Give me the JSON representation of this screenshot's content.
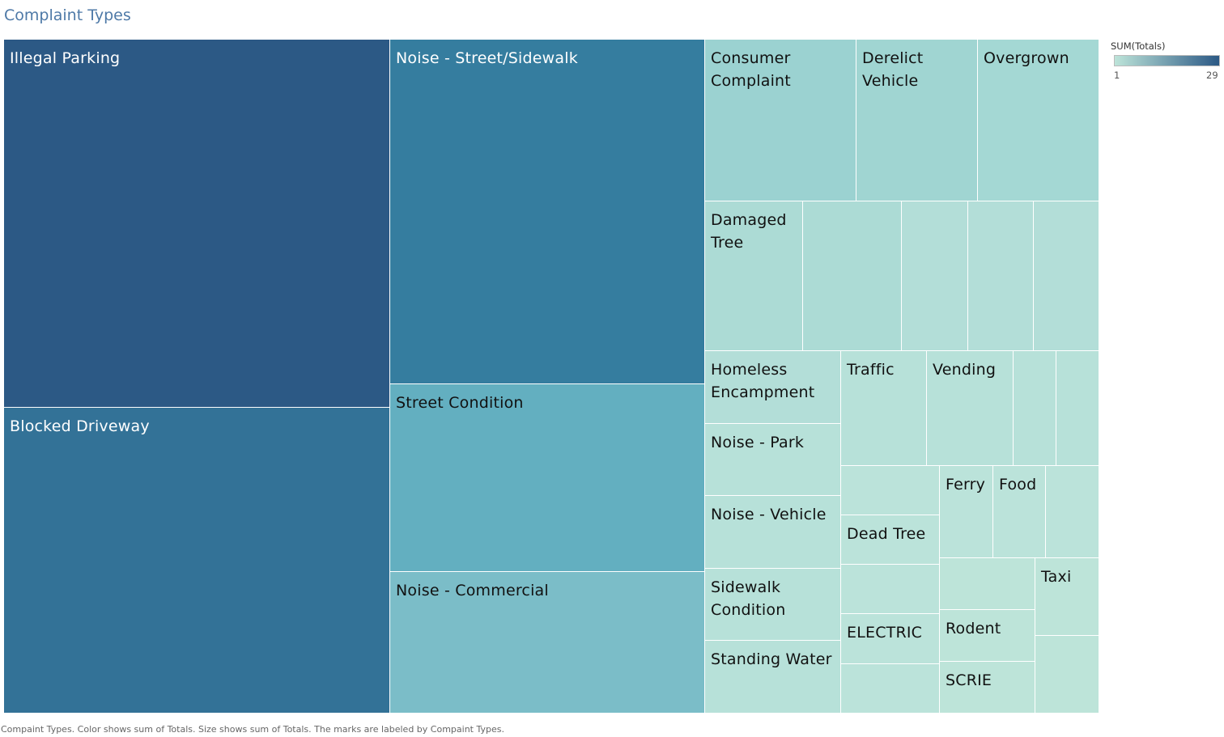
{
  "title": "Complaint Types",
  "legend": {
    "title": "SUM(Totals)",
    "min": "1",
    "max": "29",
    "color_low": "#bde4d9",
    "color_high": "#2c5985"
  },
  "footnote": "Compaint Types.  Color shows sum of Totals.  Size shows sum of Totals.  The marks are labeled by Compaint Types.",
  "chart_data": {
    "type": "treemap",
    "title": "Complaint Types",
    "size_measure": "SUM(Totals)",
    "color_measure": "SUM(Totals)",
    "color_range": [
      1,
      29
    ],
    "cells": [
      {
        "label": "Illegal Parking",
        "value": 29,
        "color": "#2c5985"
      },
      {
        "label": "Blocked Driveway",
        "value": 25,
        "color": "#337297"
      },
      {
        "label": "Noise - Street/Sidewalk",
        "value": 22,
        "color": "#357d9f"
      },
      {
        "label": "Street Condition",
        "value": 12,
        "color": "#63afc0"
      },
      {
        "label": "Noise - Commercial",
        "value": 9,
        "color": "#7bbdc8"
      },
      {
        "label": "Consumer\nComplaint",
        "value": 3,
        "color": "#9bd2d1"
      },
      {
        "label": "Derelict\nVehicle",
        "value": 2,
        "color": "#a0d5d2"
      },
      {
        "label": "Overgrown",
        "value": 2,
        "color": "#a4d8d4"
      },
      {
        "label": "Damaged\nTree",
        "value": 2,
        "color": "#acdbd5"
      },
      {
        "label": "",
        "value": 2,
        "color": "#acdbd5"
      },
      {
        "label": "",
        "value": 1,
        "color": "#b3ded8"
      },
      {
        "label": "",
        "value": 1,
        "color": "#b3ded8"
      },
      {
        "label": "",
        "value": 1,
        "color": "#b3ded8"
      },
      {
        "label": "Homeless\nEncampment",
        "value": 1,
        "color": "#b3ded8"
      },
      {
        "label": "Noise - Park",
        "value": 1,
        "color": "#b7e1d9"
      },
      {
        "label": "Noise - Vehicle",
        "value": 1,
        "color": "#b7e1d9"
      },
      {
        "label": "Sidewalk\nCondition",
        "value": 1,
        "color": "#b7e1d9"
      },
      {
        "label": "Standing Water",
        "value": 1,
        "color": "#b7e1d9"
      },
      {
        "label": "Traffic",
        "value": 1,
        "color": "#b7e1d9"
      },
      {
        "label": "Vending",
        "value": 1,
        "color": "#b7e1d9"
      },
      {
        "label": "",
        "value": 1,
        "color": "#b7e1d9"
      },
      {
        "label": "",
        "value": 1,
        "color": "#b7e1d9"
      },
      {
        "label": "",
        "value": 1,
        "color": "#bbe3da"
      },
      {
        "label": "Dead Tree",
        "value": 1,
        "color": "#bbe3da"
      },
      {
        "label": "",
        "value": 1,
        "color": "#bbe3da"
      },
      {
        "label": "ELECTRIC",
        "value": 1,
        "color": "#bbe3da"
      },
      {
        "label": "",
        "value": 1,
        "color": "#bbe3da"
      },
      {
        "label": "Ferry",
        "value": 1,
        "color": "#bbe3da"
      },
      {
        "label": "Food",
        "value": 1,
        "color": "#bbe3da"
      },
      {
        "label": "",
        "value": 1,
        "color": "#bbe3da"
      },
      {
        "label": "",
        "value": 1,
        "color": "#bde4d9"
      },
      {
        "label": "Rodent",
        "value": 1,
        "color": "#bde4d9"
      },
      {
        "label": "SCRIE",
        "value": 1,
        "color": "#bde4d9"
      },
      {
        "label": "Taxi",
        "value": 1,
        "color": "#bde4d9"
      },
      {
        "label": "",
        "value": 1,
        "color": "#bde4d9"
      }
    ]
  }
}
